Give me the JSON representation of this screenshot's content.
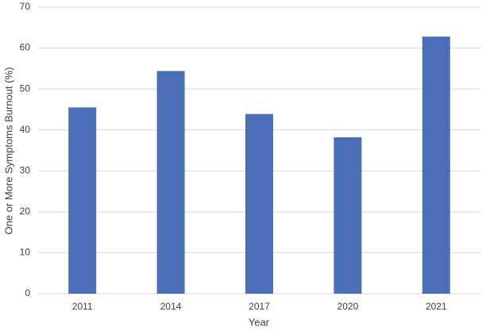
{
  "chart_data": {
    "type": "bar",
    "x_label": "Year",
    "y_label": "One or More Symptoms Burnout (%)",
    "categories": [
      "2011",
      "2014",
      "2017",
      "2020",
      "2021"
    ],
    "values": [
      45.5,
      54.4,
      43.9,
      38.2,
      62.8
    ],
    "color": "#4a6fb6",
    "ylim": [
      0,
      70
    ],
    "yticks": [
      0,
      10,
      20,
      30,
      40,
      50,
      60,
      70
    ],
    "grid": true
  }
}
